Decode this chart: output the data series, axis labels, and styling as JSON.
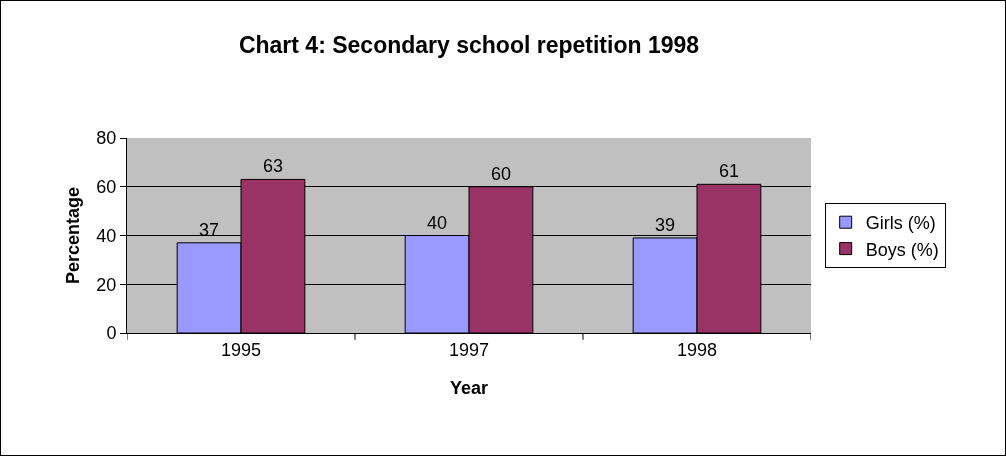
{
  "chart_data": {
    "type": "bar",
    "title": "Chart 4: Secondary school repetition 1998",
    "xlabel": "Year",
    "ylabel": "Percentage",
    "categories": [
      "1995",
      "1997",
      "1998"
    ],
    "series": [
      {
        "name": "Girls (%)",
        "color": "#9999ff",
        "values": [
          37,
          40,
          39
        ]
      },
      {
        "name": "Boys (%)",
        "color": "#993366",
        "values": [
          63,
          60,
          61
        ]
      }
    ],
    "ylim": [
      0,
      80
    ],
    "yticks": [
      0,
      20,
      40,
      60,
      80
    ],
    "grid": "y",
    "legend": "right",
    "data_labels": true
  }
}
